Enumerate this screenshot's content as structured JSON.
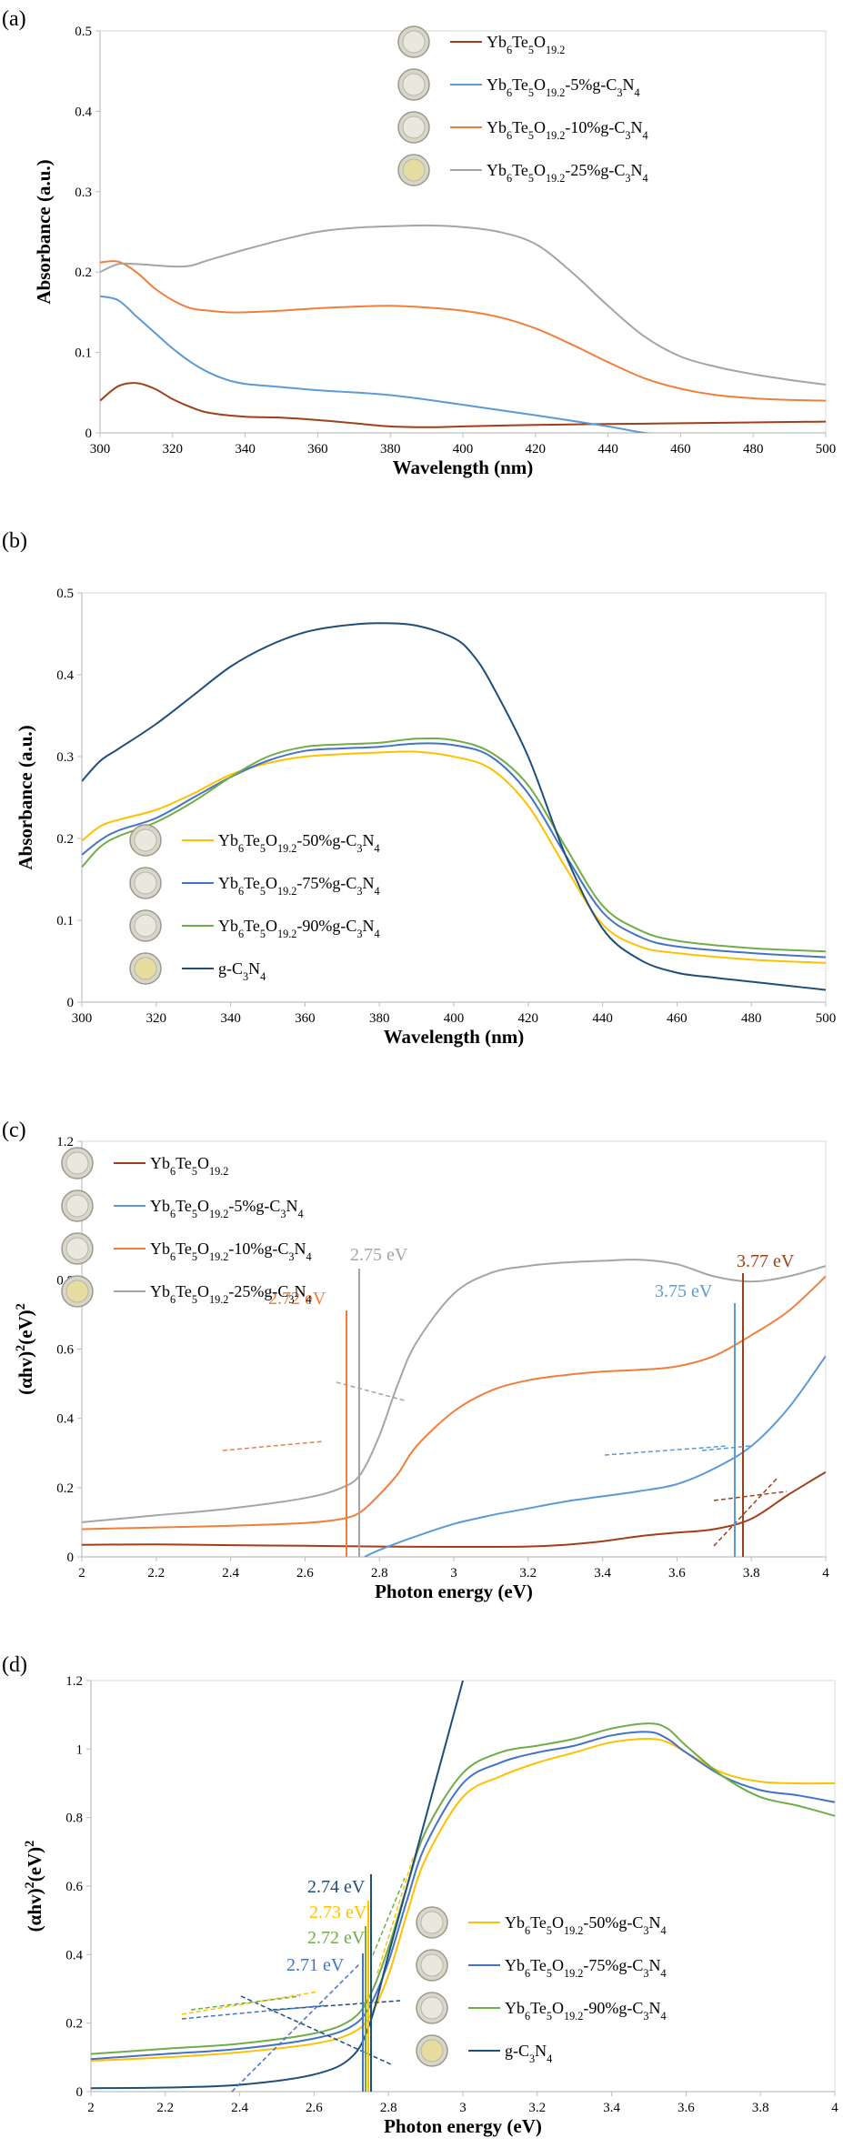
{
  "chart_data": [
    {
      "panel": "(a)",
      "type": "line",
      "xlabel": "Wavelength (nm)",
      "ylabel": "Absorbance (a.u.)",
      "xlim": [
        300,
        500
      ],
      "ylim": [
        0,
        0.5
      ],
      "xticks": [
        "300",
        "320",
        "340",
        "360",
        "380",
        "400",
        "420",
        "440",
        "460",
        "480",
        "500"
      ],
      "yticks": [
        "0",
        "0.1",
        "0.2",
        "0.3",
        "0.4",
        "0.5"
      ],
      "legend_position": "top-right",
      "series": [
        {
          "name": "Yb6Te5O19.2",
          "legend": [
            "Yb",
            "6",
            "Te",
            "5",
            "O",
            "19.2",
            ""
          ],
          "color": "#a0401a",
          "x": [
            300,
            305,
            310,
            315,
            320,
            325,
            330,
            340,
            350,
            360,
            370,
            380,
            390,
            400,
            420,
            440,
            460,
            480,
            500
          ],
          "y": [
            0.04,
            0.058,
            0.062,
            0.055,
            0.042,
            0.032,
            0.025,
            0.02,
            0.019,
            0.016,
            0.012,
            0.008,
            0.007,
            0.008,
            0.01,
            0.011,
            0.012,
            0.013,
            0.014
          ]
        },
        {
          "name": "Yb6Te5O19.2-5%g-C3N4",
          "legend": [
            "Yb",
            "6",
            "Te",
            "5",
            "O",
            "19.2",
            "-5%g-C",
            "3",
            "N",
            "4",
            ""
          ],
          "color": "#5b9bd5",
          "x": [
            300,
            305,
            310,
            315,
            320,
            325,
            330,
            335,
            340,
            350,
            360,
            380,
            400,
            420,
            440,
            450,
            460,
            480,
            500
          ],
          "y": [
            0.17,
            0.165,
            0.145,
            0.125,
            0.105,
            0.088,
            0.075,
            0.066,
            0.061,
            0.057,
            0.053,
            0.047,
            0.035,
            0.022,
            0.008,
            0.0,
            -0.004,
            -0.006,
            -0.008
          ]
        },
        {
          "name": "Yb6Te5O19.2-10%g-C3N4",
          "legend": [
            "Yb",
            "6",
            "Te",
            "5",
            "O",
            "19.2",
            "-10%g-C",
            "3",
            "N",
            "4",
            ""
          ],
          "color": "#f07f3c",
          "x": [
            300,
            305,
            310,
            315,
            320,
            325,
            330,
            335,
            340,
            350,
            360,
            370,
            380,
            390,
            400,
            410,
            420,
            430,
            440,
            450,
            460,
            470,
            480,
            490,
            500
          ],
          "y": [
            0.212,
            0.213,
            0.2,
            0.18,
            0.165,
            0.155,
            0.152,
            0.15,
            0.15,
            0.152,
            0.155,
            0.157,
            0.158,
            0.156,
            0.152,
            0.144,
            0.13,
            0.11,
            0.088,
            0.068,
            0.055,
            0.047,
            0.043,
            0.041,
            0.04
          ]
        },
        {
          "name": "Yb6Te5O19.2-25%g-C3N4",
          "legend": [
            "Yb",
            "6",
            "Te",
            "5",
            "O",
            "19.2",
            "-25%g-C",
            "3",
            "N",
            "4",
            ""
          ],
          "color": "#a5a5a5",
          "x": [
            300,
            305,
            310,
            320,
            325,
            330,
            340,
            350,
            360,
            370,
            380,
            390,
            400,
            410,
            420,
            430,
            440,
            450,
            460,
            470,
            480,
            490,
            500
          ],
          "y": [
            0.2,
            0.21,
            0.21,
            0.207,
            0.208,
            0.215,
            0.228,
            0.24,
            0.25,
            0.255,
            0.257,
            0.258,
            0.256,
            0.25,
            0.235,
            0.2,
            0.158,
            0.12,
            0.095,
            0.082,
            0.073,
            0.066,
            0.06
          ]
        }
      ]
    },
    {
      "panel": "(b)",
      "type": "line",
      "xlabel": "Wavelength (nm)",
      "ylabel": "Absorbance (a.u.)",
      "xlim": [
        300,
        500
      ],
      "ylim": [
        0,
        0.5
      ],
      "xticks": [
        "300",
        "320",
        "340",
        "360",
        "380",
        "400",
        "420",
        "440",
        "460",
        "480",
        "500"
      ],
      "yticks": [
        "0",
        "0.1",
        "0.2",
        "0.3",
        "0.4",
        "0.5"
      ],
      "legend_position": "bottom-left",
      "series": [
        {
          "name": "Yb6Te5O19.2-50%g-C3N4",
          "legend": [
            "Yb",
            "6",
            "Te",
            "5",
            "O",
            "19.2",
            "-50%g-C",
            "3",
            "N",
            "4",
            ""
          ],
          "color": "#ffc000",
          "x": [
            300,
            305,
            310,
            320,
            330,
            340,
            350,
            360,
            370,
            380,
            390,
            400,
            410,
            420,
            430,
            440,
            450,
            460,
            480,
            500
          ],
          "y": [
            0.197,
            0.215,
            0.223,
            0.235,
            0.255,
            0.278,
            0.292,
            0.3,
            0.303,
            0.305,
            0.306,
            0.3,
            0.285,
            0.24,
            0.165,
            0.095,
            0.068,
            0.06,
            0.052,
            0.048
          ]
        },
        {
          "name": "Yb6Te5O19.2-75%g-C3N4",
          "legend": [
            "Yb",
            "6",
            "Te",
            "5",
            "O",
            "19.2",
            "-75%g-C",
            "3",
            "N",
            "4",
            ""
          ],
          "color": "#4472c4",
          "x": [
            300,
            305,
            310,
            320,
            330,
            340,
            350,
            360,
            370,
            380,
            390,
            400,
            410,
            420,
            430,
            440,
            450,
            460,
            480,
            500
          ],
          "y": [
            0.18,
            0.198,
            0.21,
            0.225,
            0.25,
            0.275,
            0.295,
            0.307,
            0.31,
            0.312,
            0.316,
            0.314,
            0.3,
            0.255,
            0.18,
            0.11,
            0.08,
            0.068,
            0.06,
            0.055
          ]
        },
        {
          "name": "Yb6Te5O19.2-90%g-C3N4",
          "legend": [
            "Yb",
            "6",
            "Te",
            "5",
            "O",
            "19.2",
            "-90%g-C",
            "3",
            "N",
            "4",
            ""
          ],
          "color": "#70ad47",
          "x": [
            300,
            305,
            310,
            320,
            330,
            340,
            350,
            360,
            370,
            380,
            390,
            400,
            410,
            420,
            430,
            440,
            450,
            460,
            480,
            500
          ],
          "y": [
            0.165,
            0.19,
            0.203,
            0.22,
            0.245,
            0.275,
            0.3,
            0.312,
            0.315,
            0.317,
            0.322,
            0.32,
            0.305,
            0.265,
            0.19,
            0.118,
            0.088,
            0.075,
            0.066,
            0.062
          ]
        },
        {
          "name": "g-C3N4",
          "legend": [
            "g-C",
            "3",
            "N",
            "4",
            ""
          ],
          "color": "#1f4e79",
          "x": [
            300,
            305,
            310,
            320,
            330,
            340,
            350,
            360,
            370,
            380,
            390,
            400,
            405,
            410,
            420,
            430,
            440,
            450,
            460,
            470,
            480,
            490,
            500
          ],
          "y": [
            0.27,
            0.295,
            0.31,
            0.34,
            0.375,
            0.41,
            0.435,
            0.452,
            0.46,
            0.463,
            0.46,
            0.445,
            0.425,
            0.39,
            0.3,
            0.18,
            0.09,
            0.052,
            0.036,
            0.03,
            0.025,
            0.02,
            0.015
          ]
        }
      ]
    },
    {
      "panel": "(c)",
      "type": "line",
      "xlabel": "Photon energy (eV)",
      "ylabel_parts": [
        "(αhv)",
        "2",
        "(eV)",
        "2"
      ],
      "xlim": [
        2,
        4
      ],
      "ylim": [
        0,
        1.2
      ],
      "xticks": [
        "2",
        "2.2",
        "2.4",
        "2.6",
        "2.8",
        "3",
        "3.2",
        "3.4",
        "3.6",
        "3.8",
        "4"
      ],
      "yticks": [
        "0",
        "0.2",
        "0.4",
        "0.6",
        "0.8",
        "1",
        "1.2"
      ],
      "legend_position": "top-left",
      "annotations": [
        {
          "label": "2.75 eV",
          "color": "#a5a5a5"
        },
        {
          "label": "2.72 eV",
          "color": "#f07f3c"
        },
        {
          "label": "3.77 eV",
          "color": "#a0401a"
        },
        {
          "label": "3.75 eV",
          "color": "#5b9bd5"
        }
      ],
      "series": [
        {
          "name": "Yb6Te5O19.2",
          "legend": [
            "Yb",
            "6",
            "Te",
            "5",
            "O",
            "19.2",
            ""
          ],
          "color": "#a0401a",
          "x": [
            2.0,
            2.2,
            2.4,
            2.6,
            2.8,
            3.0,
            3.2,
            3.3,
            3.4,
            3.5,
            3.6,
            3.7,
            3.8,
            3.9,
            4.0
          ],
          "y": [
            0.035,
            0.036,
            0.034,
            0.032,
            0.03,
            0.029,
            0.03,
            0.035,
            0.045,
            0.06,
            0.07,
            0.08,
            0.11,
            0.18,
            0.245
          ]
        },
        {
          "name": "Yb6Te5O19.2-5%g-C3N4",
          "legend": [
            "Yb",
            "6",
            "Te",
            "5",
            "O",
            "19.2",
            "-5%g-C",
            "3",
            "N",
            "4",
            ""
          ],
          "color": "#5b9bd5",
          "x": [
            2.76,
            2.8,
            2.9,
            3.0,
            3.1,
            3.2,
            3.3,
            3.4,
            3.5,
            3.6,
            3.7,
            3.8,
            3.9,
            4.0
          ],
          "y": [
            0.0,
            0.02,
            0.06,
            0.095,
            0.12,
            0.14,
            0.16,
            0.175,
            0.19,
            0.21,
            0.255,
            0.32,
            0.43,
            0.58
          ]
        },
        {
          "name": "Yb6Te5O19.2-10%g-C3N4",
          "legend": [
            "Yb",
            "6",
            "Te",
            "5",
            "O",
            "19.2",
            "-10%g-C",
            "3",
            "N",
            "4",
            ""
          ],
          "color": "#f07f3c",
          "x": [
            2.0,
            2.2,
            2.4,
            2.6,
            2.7,
            2.75,
            2.8,
            2.85,
            2.9,
            3.0,
            3.1,
            3.2,
            3.3,
            3.4,
            3.5,
            3.6,
            3.7,
            3.8,
            3.9,
            4.0
          ],
          "y": [
            0.08,
            0.085,
            0.09,
            0.098,
            0.11,
            0.13,
            0.18,
            0.24,
            0.32,
            0.42,
            0.48,
            0.51,
            0.525,
            0.535,
            0.54,
            0.55,
            0.58,
            0.64,
            0.71,
            0.81
          ]
        },
        {
          "name": "Yb6Te5O19.2-25%g-C3N4",
          "legend": [
            "Yb",
            "6",
            "Te",
            "5",
            "O",
            "19.2",
            "-25%g-C",
            "3",
            "N",
            "4",
            ""
          ],
          "color": "#a5a5a5",
          "x": [
            2.0,
            2.2,
            2.4,
            2.6,
            2.7,
            2.75,
            2.8,
            2.85,
            2.9,
            3.0,
            3.1,
            3.2,
            3.3,
            3.4,
            3.5,
            3.6,
            3.7,
            3.8,
            3.9,
            4.0
          ],
          "y": [
            0.1,
            0.12,
            0.14,
            0.17,
            0.2,
            0.24,
            0.35,
            0.5,
            0.62,
            0.76,
            0.82,
            0.84,
            0.85,
            0.855,
            0.858,
            0.845,
            0.81,
            0.795,
            0.81,
            0.84
          ]
        }
      ]
    },
    {
      "panel": "(d)",
      "type": "line",
      "xlabel": "Photon energy (eV)",
      "ylabel_parts": [
        "(αhv)",
        "2",
        "(eV)",
        "2"
      ],
      "xlim": [
        2,
        4
      ],
      "ylim": [
        0,
        1.2
      ],
      "xticks": [
        "2",
        "2.2",
        "2.4",
        "2.6",
        "2.8",
        "3",
        "3.2",
        "3.4",
        "3.6",
        "3.8",
        "4"
      ],
      "yticks": [
        "0",
        "0.2",
        "0.4",
        "0.6",
        "0.8",
        "1",
        "1.2"
      ],
      "legend_position": "bottom-right",
      "annotations": [
        {
          "label": "2.74 eV",
          "color": "#1f4e79"
        },
        {
          "label": "2.73 eV",
          "color": "#ffc000"
        },
        {
          "label": "2.72 eV",
          "color": "#70ad47"
        },
        {
          "label": "2.71 eV",
          "color": "#4472c4"
        }
      ],
      "series": [
        {
          "name": "Yb6Te5O19.2-50%g-C3N4",
          "legend": [
            "Yb",
            "6",
            "Te",
            "5",
            "O",
            "19.2",
            "-50%g-C",
            "3",
            "N",
            "4",
            ""
          ],
          "color": "#ffc000",
          "x": [
            2.0,
            2.2,
            2.4,
            2.6,
            2.7,
            2.75,
            2.8,
            2.85,
            2.9,
            3.0,
            3.1,
            3.2,
            3.3,
            3.4,
            3.5,
            3.55,
            3.6,
            3.7,
            3.8,
            3.9,
            4.0
          ],
          "y": [
            0.09,
            0.1,
            0.115,
            0.14,
            0.17,
            0.22,
            0.34,
            0.52,
            0.68,
            0.86,
            0.92,
            0.96,
            0.99,
            1.02,
            1.03,
            1.02,
            0.99,
            0.93,
            0.905,
            0.9,
            0.9
          ]
        },
        {
          "name": "Yb6Te5O19.2-75%g-C3N4",
          "legend": [
            "Yb",
            "6",
            "Te",
            "5",
            "O",
            "19.2",
            "-75%g-C",
            "3",
            "N",
            "4",
            ""
          ],
          "color": "#4472c4",
          "x": [
            2.0,
            2.2,
            2.4,
            2.6,
            2.7,
            2.75,
            2.8,
            2.85,
            2.9,
            3.0,
            3.1,
            3.2,
            3.3,
            3.4,
            3.5,
            3.55,
            3.6,
            3.7,
            3.8,
            3.9,
            4.0
          ],
          "y": [
            0.095,
            0.11,
            0.125,
            0.155,
            0.19,
            0.25,
            0.38,
            0.56,
            0.72,
            0.9,
            0.96,
            0.99,
            1.01,
            1.04,
            1.05,
            1.03,
            0.99,
            0.92,
            0.88,
            0.865,
            0.845
          ]
        },
        {
          "name": "Yb6Te5O19.2-90%g-C3N4",
          "legend": [
            "Yb",
            "6",
            "Te",
            "5",
            "O",
            "19.2",
            "-90%g-C",
            "3",
            "N",
            "4",
            ""
          ],
          "color": "#70ad47",
          "x": [
            2.0,
            2.2,
            2.4,
            2.6,
            2.7,
            2.75,
            2.8,
            2.85,
            2.9,
            3.0,
            3.1,
            3.2,
            3.3,
            3.4,
            3.5,
            3.55,
            3.6,
            3.7,
            3.8,
            3.9,
            4.0
          ],
          "y": [
            0.11,
            0.125,
            0.14,
            0.17,
            0.21,
            0.28,
            0.42,
            0.6,
            0.76,
            0.93,
            0.99,
            1.01,
            1.03,
            1.06,
            1.075,
            1.06,
            1.01,
            0.92,
            0.86,
            0.835,
            0.805
          ]
        },
        {
          "name": "g-C3N4",
          "legend": [
            "g-C",
            "3",
            "N",
            "4",
            ""
          ],
          "color": "#1f4e79",
          "x": [
            2.0,
            2.2,
            2.4,
            2.6,
            2.7,
            2.75,
            2.8,
            2.85,
            2.9,
            2.95,
            3.0
          ],
          "y": [
            0.01,
            0.012,
            0.02,
            0.05,
            0.1,
            0.2,
            0.4,
            0.6,
            0.8,
            1.0,
            1.2
          ]
        }
      ]
    }
  ]
}
